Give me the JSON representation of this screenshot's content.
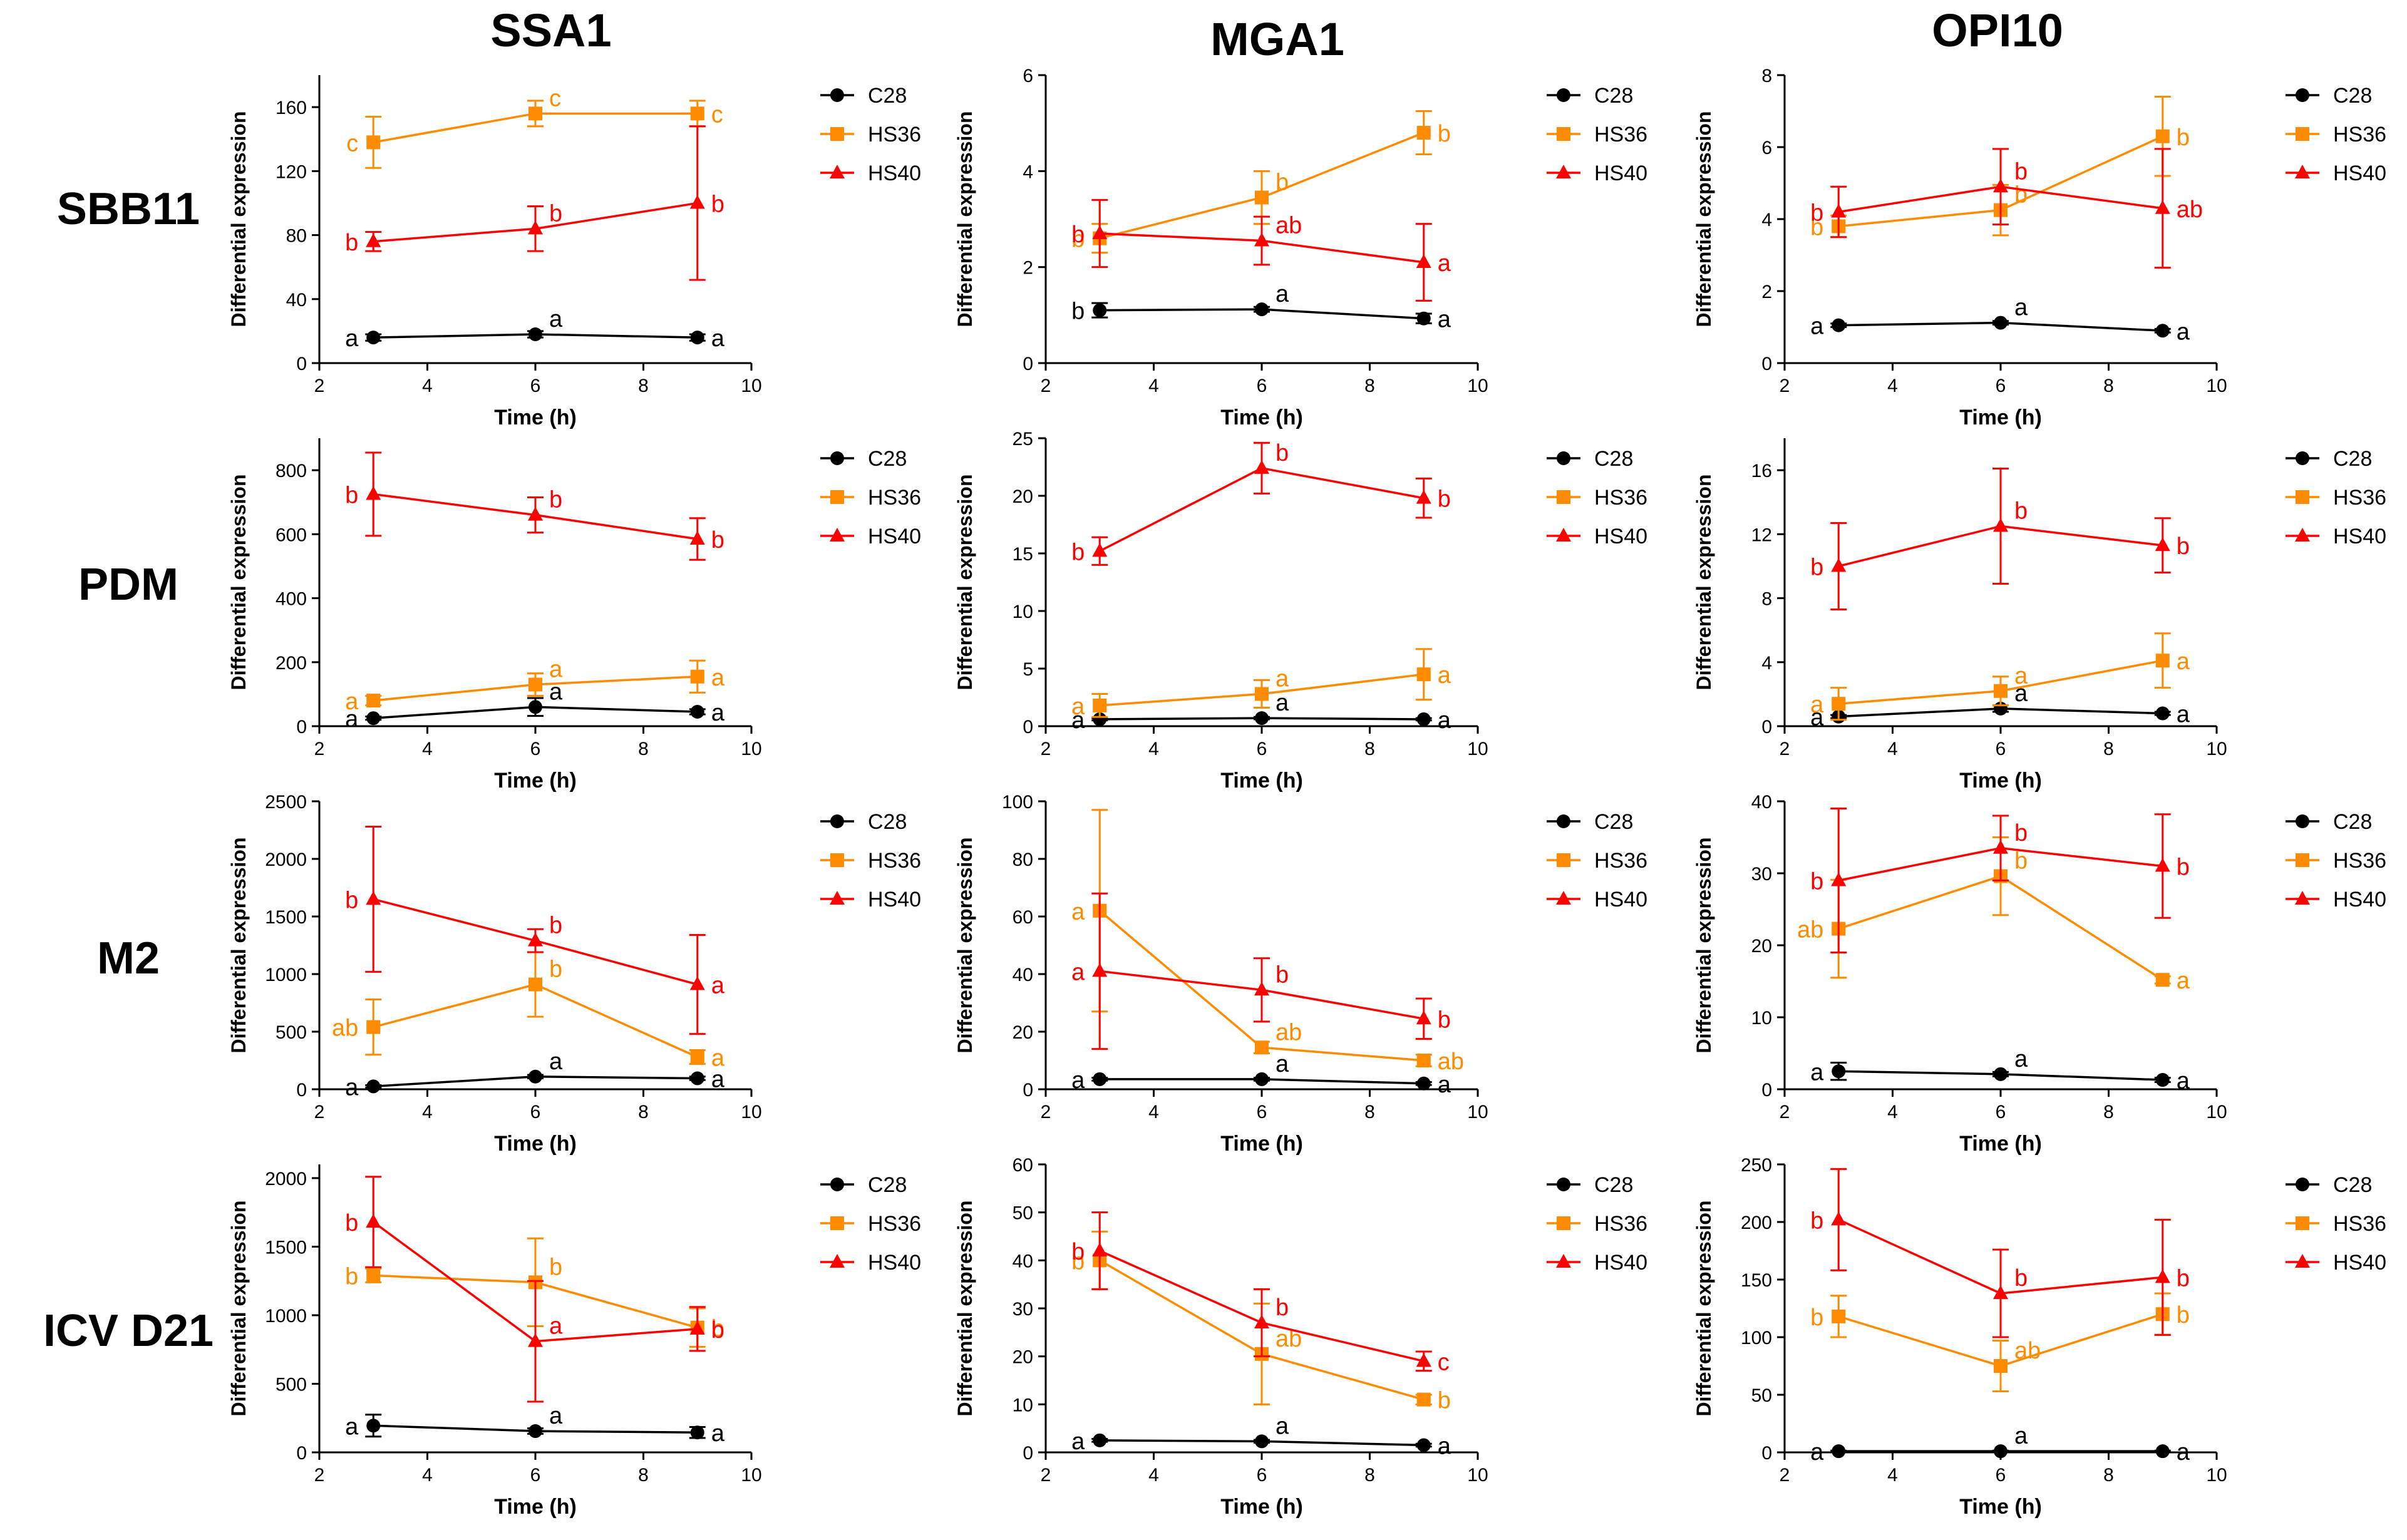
{
  "figure": {
    "columns": [
      "SSA1",
      "MGA1",
      "OPI10"
    ],
    "rows": [
      "SBB11",
      "PDM",
      "M2",
      "ICV D21"
    ],
    "colors": {
      "C28": "#000000",
      "HS36": "#ff8c00",
      "HS40": "#ff0000"
    }
  },
  "chart_data": [
    {
      "type": "line",
      "panel": "SBB11 - SSA1",
      "title": "SSA1",
      "row": "SBB11",
      "xlabel": "Time (h)",
      "ylabel": "Differential expression",
      "xlim": [
        2,
        10
      ],
      "xticks": [
        2,
        4,
        6,
        8,
        10
      ],
      "ylim": [
        0,
        180
      ],
      "yticks": [
        0,
        40,
        80,
        120,
        160
      ],
      "x": [
        3,
        6,
        9
      ],
      "series": [
        {
          "name": "C28",
          "values": [
            16,
            18,
            16
          ],
          "err": [
            2,
            2,
            2
          ],
          "letters": [
            "a",
            "a",
            "a"
          ]
        },
        {
          "name": "HS36",
          "values": [
            138,
            156,
            156
          ],
          "err": [
            16,
            8,
            8
          ],
          "letters": [
            "c",
            "c",
            "c"
          ]
        },
        {
          "name": "HS40",
          "values": [
            76,
            84,
            100
          ],
          "err": [
            6,
            14,
            48
          ],
          "letters": [
            "b",
            "b",
            "b"
          ]
        }
      ]
    },
    {
      "type": "line",
      "panel": "SBB11 - MGA1",
      "title": "MGA1",
      "row": "SBB11",
      "xlabel": "Time (h)",
      "ylabel": "Differential expression",
      "xlim": [
        2,
        10
      ],
      "xticks": [
        2,
        4,
        6,
        8,
        10
      ],
      "ylim": [
        0,
        6
      ],
      "yticks": [
        0,
        2,
        4,
        6
      ],
      "x": [
        3,
        6,
        9
      ],
      "series": [
        {
          "name": "C28",
          "values": [
            1.1,
            1.12,
            0.93
          ],
          "err": [
            0.15,
            0.05,
            0.1
          ],
          "letters": [
            "b",
            "a",
            "a"
          ]
        },
        {
          "name": "HS36",
          "values": [
            2.6,
            3.45,
            4.8
          ],
          "err": [
            0.3,
            0.55,
            0.45
          ],
          "letters": [
            "b",
            "b",
            "b"
          ]
        },
        {
          "name": "HS40",
          "values": [
            2.7,
            2.55,
            2.1
          ],
          "err": [
            0.7,
            0.5,
            0.8
          ],
          "letters": [
            "b",
            "ab",
            "a"
          ]
        }
      ]
    },
    {
      "type": "line",
      "panel": "SBB11 - OPI10",
      "title": "OPI10",
      "row": "SBB11",
      "xlabel": "Time (h)",
      "ylabel": "Differential expression",
      "xlim": [
        2,
        10
      ],
      "xticks": [
        2,
        4,
        6,
        8,
        10
      ],
      "ylim": [
        0,
        8
      ],
      "yticks": [
        0,
        2,
        4,
        6,
        8
      ],
      "x": [
        3,
        6,
        9
      ],
      "series": [
        {
          "name": "C28",
          "values": [
            1.05,
            1.12,
            0.9
          ],
          "err": [
            0.05,
            0.05,
            0.05
          ],
          "letters": [
            "a",
            "a",
            "a"
          ]
        },
        {
          "name": "HS36",
          "values": [
            3.8,
            4.25,
            6.3
          ],
          "err": [
            0.3,
            0.7,
            1.1
          ],
          "letters": [
            "b",
            "b",
            "b"
          ]
        },
        {
          "name": "HS40",
          "values": [
            4.2,
            4.9,
            4.3
          ],
          "err": [
            0.7,
            1.05,
            1.65
          ],
          "letters": [
            "b",
            "b",
            "ab"
          ]
        }
      ]
    },
    {
      "type": "line",
      "panel": "PDM - SSA1",
      "title": "SSA1",
      "row": "PDM",
      "xlabel": "Time (h)",
      "ylabel": "Differential expression",
      "xlim": [
        2,
        10
      ],
      "xticks": [
        2,
        4,
        6,
        8,
        10
      ],
      "ylim": [
        0,
        900
      ],
      "yticks": [
        0,
        200,
        400,
        600,
        800
      ],
      "x": [
        3,
        6,
        9
      ],
      "series": [
        {
          "name": "C28",
          "values": [
            25,
            60,
            45
          ],
          "err": [
            5,
            28,
            8
          ],
          "letters": [
            "a",
            "a",
            "a"
          ]
        },
        {
          "name": "HS36",
          "values": [
            80,
            130,
            155
          ],
          "err": [
            15,
            35,
            50
          ],
          "letters": [
            "a",
            "a",
            "a"
          ]
        },
        {
          "name": "HS40",
          "values": [
            725,
            660,
            585
          ],
          "err": [
            130,
            55,
            65
          ],
          "letters": [
            "b",
            "b",
            "b"
          ]
        }
      ]
    },
    {
      "type": "line",
      "panel": "PDM - MGA1",
      "title": "MGA1",
      "row": "PDM",
      "xlabel": "Time (h)",
      "ylabel": "Differential expression",
      "xlim": [
        2,
        10
      ],
      "xticks": [
        2,
        4,
        6,
        8,
        10
      ],
      "ylim": [
        0,
        25
      ],
      "yticks": [
        0,
        5,
        10,
        15,
        20,
        25
      ],
      "x": [
        3,
        6,
        9
      ],
      "series": [
        {
          "name": "C28",
          "values": [
            0.6,
            0.7,
            0.6
          ],
          "err": [
            0.1,
            0.1,
            0.1
          ],
          "letters": [
            "a",
            "a",
            "a"
          ]
        },
        {
          "name": "HS36",
          "values": [
            1.8,
            2.8,
            4.5
          ],
          "err": [
            1.0,
            1.2,
            2.2
          ],
          "letters": [
            "a",
            "a",
            "a"
          ]
        },
        {
          "name": "HS40",
          "values": [
            15.2,
            22.4,
            19.8
          ],
          "err": [
            1.2,
            2.2,
            1.7
          ],
          "letters": [
            "b",
            "b",
            "b"
          ]
        }
      ]
    },
    {
      "type": "line",
      "panel": "PDM - OPI10",
      "title": "OPI10",
      "row": "PDM",
      "xlabel": "Time (h)",
      "ylabel": "Differential expression",
      "xlim": [
        2,
        10
      ],
      "xticks": [
        2,
        4,
        6,
        8,
        10
      ],
      "ylim": [
        0,
        18
      ],
      "yticks": [
        0,
        4,
        8,
        12,
        16
      ],
      "x": [
        3,
        6,
        9
      ],
      "series": [
        {
          "name": "C28",
          "values": [
            0.6,
            1.1,
            0.8
          ],
          "err": [
            0.1,
            0.2,
            0.1
          ],
          "letters": [
            "a",
            "a",
            "a"
          ]
        },
        {
          "name": "HS36",
          "values": [
            1.4,
            2.2,
            4.1
          ],
          "err": [
            1.0,
            0.9,
            1.7
          ],
          "letters": [
            "a",
            "a",
            "a"
          ]
        },
        {
          "name": "HS40",
          "values": [
            10.0,
            12.5,
            11.3
          ],
          "err": [
            2.7,
            3.6,
            1.7
          ],
          "letters": [
            "b",
            "b",
            "b"
          ]
        }
      ]
    },
    {
      "type": "line",
      "panel": "M2 - SSA1",
      "title": "SSA1",
      "row": "M2",
      "xlabel": "Time (h)",
      "ylabel": "Differential expression",
      "xlim": [
        2,
        10
      ],
      "xticks": [
        2,
        4,
        6,
        8,
        10
      ],
      "ylim": [
        0,
        2500
      ],
      "yticks": [
        0,
        500,
        1000,
        1500,
        2000,
        2500
      ],
      "x": [
        3,
        6,
        9
      ],
      "series": [
        {
          "name": "C28",
          "values": [
            25,
            110,
            95
          ],
          "err": [
            10,
            15,
            15
          ],
          "letters": [
            "a",
            "a",
            "a"
          ]
        },
        {
          "name": "HS36",
          "values": [
            540,
            910,
            280
          ],
          "err": [
            240,
            280,
            60
          ],
          "letters": [
            "ab",
            "b",
            "a"
          ]
        },
        {
          "name": "HS40",
          "values": [
            1650,
            1290,
            910
          ],
          "err": [
            630,
            100,
            430
          ],
          "letters": [
            "b",
            "b",
            "a"
          ]
        }
      ]
    },
    {
      "type": "line",
      "panel": "M2 - MGA1",
      "title": "MGA1",
      "row": "M2",
      "xlabel": "Time (h)",
      "ylabel": "Differential expression",
      "xlim": [
        2,
        10
      ],
      "xticks": [
        2,
        4,
        6,
        8,
        10
      ],
      "ylim": [
        0,
        100
      ],
      "yticks": [
        0,
        20,
        40,
        60,
        80,
        100
      ],
      "x": [
        3,
        6,
        9
      ],
      "series": [
        {
          "name": "C28",
          "values": [
            3.5,
            3.5,
            2
          ],
          "err": [
            0.5,
            0.5,
            0.5
          ],
          "letters": [
            "a",
            "a",
            "a"
          ]
        },
        {
          "name": "HS36",
          "values": [
            62,
            14.5,
            10
          ],
          "err": [
            35,
            2,
            2
          ],
          "letters": [
            "a",
            "ab",
            "ab"
          ]
        },
        {
          "name": "HS40",
          "values": [
            41,
            34.5,
            24.5
          ],
          "err": [
            27,
            11,
            7
          ],
          "letters": [
            "a",
            "b",
            "b"
          ]
        }
      ]
    },
    {
      "type": "line",
      "panel": "M2 - OPI10",
      "title": "OPI10",
      "row": "M2",
      "xlabel": "Time (h)",
      "ylabel": "Differential expression",
      "xlim": [
        2,
        10
      ],
      "xticks": [
        2,
        4,
        6,
        8,
        10
      ],
      "ylim": [
        0,
        40
      ],
      "yticks": [
        0,
        10,
        20,
        30,
        40
      ],
      "x": [
        3,
        6,
        9
      ],
      "series": [
        {
          "name": "C28",
          "values": [
            2.5,
            2.1,
            1.3
          ],
          "err": [
            1.2,
            0.3,
            0.3
          ],
          "letters": [
            "a",
            "a",
            "a"
          ]
        },
        {
          "name": "HS36",
          "values": [
            22.3,
            29.6,
            15.2
          ],
          "err": [
            6.8,
            5.4,
            0.5
          ],
          "letters": [
            "ab",
            "b",
            "a"
          ]
        },
        {
          "name": "HS40",
          "values": [
            29,
            33.5,
            31
          ],
          "err": [
            10,
            4.5,
            7.2
          ],
          "letters": [
            "b",
            "b",
            "b"
          ]
        }
      ]
    },
    {
      "type": "line",
      "panel": "ICV D21 - SSA1",
      "title": "SSA1",
      "row": "ICV D21",
      "xlabel": "Time (h)",
      "ylabel": "Differential expression",
      "xlim": [
        2,
        10
      ],
      "xticks": [
        2,
        4,
        6,
        8,
        10
      ],
      "ylim": [
        0,
        2100
      ],
      "yticks": [
        0,
        500,
        1000,
        1500,
        2000
      ],
      "x": [
        3,
        6,
        9
      ],
      "series": [
        {
          "name": "C28",
          "values": [
            195,
            155,
            145
          ],
          "err": [
            80,
            20,
            40
          ],
          "letters": [
            "a",
            "a",
            "a"
          ]
        },
        {
          "name": "HS36",
          "values": [
            1290,
            1240,
            910
          ],
          "err": [
            50,
            320,
            140
          ],
          "letters": [
            "b",
            "b",
            "b"
          ]
        },
        {
          "name": "HS40",
          "values": [
            1680,
            810,
            900
          ],
          "err": [
            330,
            440,
            160
          ],
          "letters": [
            "b",
            "a",
            "b"
          ]
        }
      ]
    },
    {
      "type": "line",
      "panel": "ICV D21 - MGA1",
      "title": "MGA1",
      "row": "ICV D21",
      "xlabel": "Time (h)",
      "ylabel": "Differential expression",
      "xlim": [
        2,
        10
      ],
      "xticks": [
        2,
        4,
        6,
        8,
        10
      ],
      "ylim": [
        0,
        60
      ],
      "yticks": [
        0,
        10,
        20,
        30,
        40,
        50,
        60
      ],
      "x": [
        3,
        6,
        9
      ],
      "series": [
        {
          "name": "C28",
          "values": [
            2.5,
            2.3,
            1.5
          ],
          "err": [
            0.3,
            0.3,
            0.3
          ],
          "letters": [
            "a",
            "a",
            "a"
          ]
        },
        {
          "name": "HS36",
          "values": [
            40,
            20.5,
            11
          ],
          "err": [
            6,
            10.5,
            1
          ],
          "letters": [
            "b",
            "ab",
            "b"
          ]
        },
        {
          "name": "HS40",
          "values": [
            42,
            27,
            19
          ],
          "err": [
            8,
            7,
            2
          ],
          "letters": [
            "b",
            "b",
            "c"
          ]
        }
      ]
    },
    {
      "type": "line",
      "panel": "ICV D21 - OPI10",
      "title": "OPI10",
      "row": "ICV D21",
      "xlabel": "Time (h)",
      "ylabel": "Differential expression",
      "xlim": [
        2,
        10
      ],
      "xticks": [
        2,
        4,
        6,
        8,
        10
      ],
      "ylim": [
        0,
        250
      ],
      "yticks": [
        0,
        50,
        100,
        150,
        200,
        250
      ],
      "x": [
        3,
        6,
        9
      ],
      "series": [
        {
          "name": "C28",
          "values": [
            1,
            1,
            1
          ],
          "err": [
            0.5,
            0.5,
            0.5
          ],
          "letters": [
            "a",
            "a",
            "a"
          ]
        },
        {
          "name": "HS36",
          "values": [
            118,
            75,
            120
          ],
          "err": [
            18,
            22,
            18
          ],
          "letters": [
            "b",
            "ab",
            "b"
          ]
        },
        {
          "name": "HS40",
          "values": [
            202,
            138,
            152
          ],
          "err": [
            44,
            38,
            50
          ],
          "letters": [
            "b",
            "b",
            "b"
          ]
        }
      ]
    }
  ]
}
